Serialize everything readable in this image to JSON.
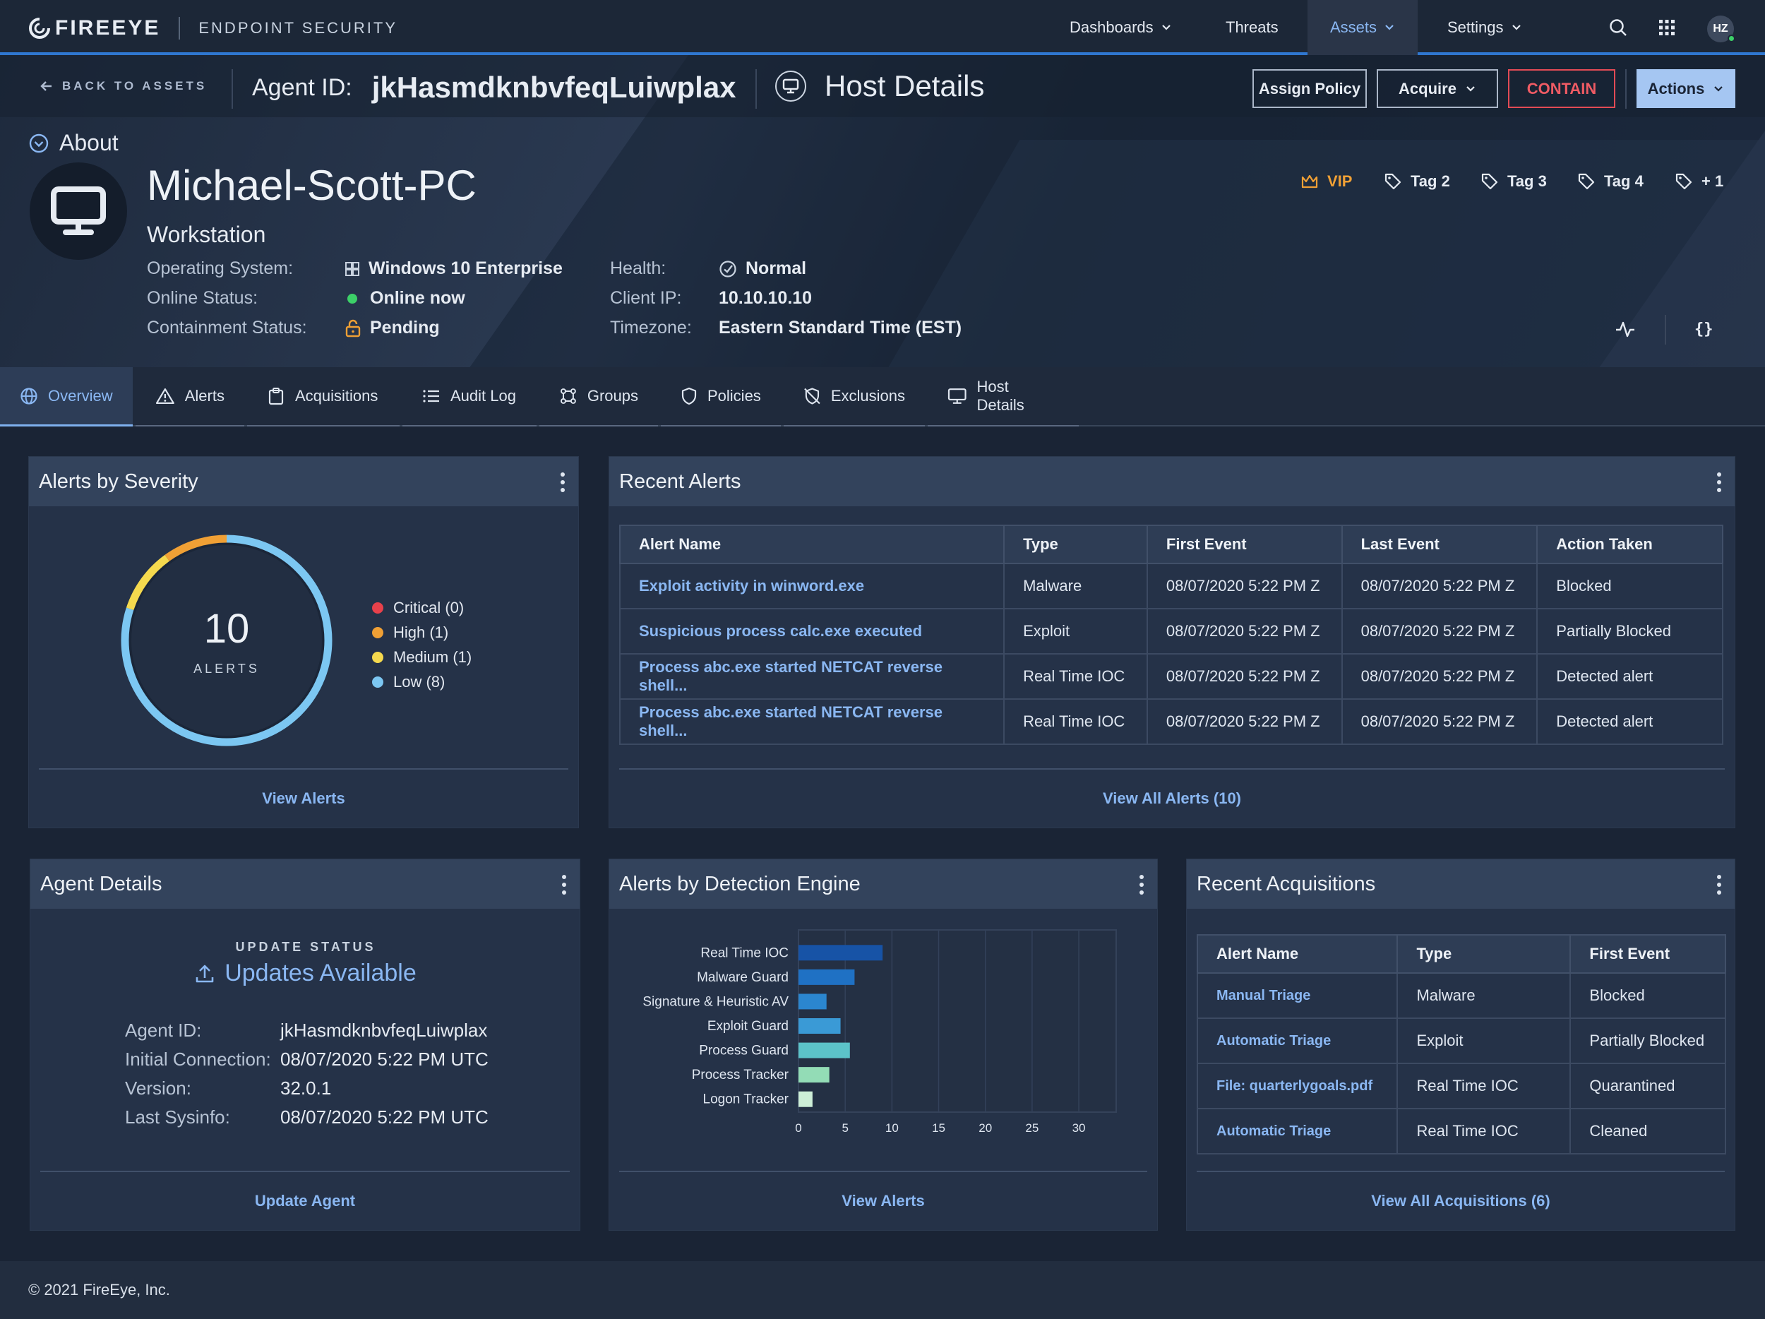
{
  "brand": {
    "logo": "FIREEYE",
    "product": "ENDPOINT SECURITY"
  },
  "nav": {
    "items": [
      {
        "label": "Dashboards",
        "dropdown": true
      },
      {
        "label": "Threats",
        "dropdown": false
      },
      {
        "label": "Assets",
        "dropdown": true,
        "active": true
      },
      {
        "label": "Settings",
        "dropdown": true
      }
    ],
    "avatar": "HZ"
  },
  "subbar": {
    "back_label": "BACK TO ASSETS",
    "agent_label": "Agent ID:",
    "agent_id": "jkHasmdknbvfeqLuiwplax",
    "page_title": "Host Details",
    "buttons": {
      "assign": "Assign Policy",
      "acquire": "Acquire",
      "contain": "CONTAIN",
      "actions": "Actions"
    }
  },
  "host": {
    "about_label": "About",
    "name": "Michael-Scott-PC",
    "type": "Workstation",
    "left_attrs": [
      {
        "key": "Operating System:",
        "value": "Windows 10 Enterprise",
        "icon": "windows-icon"
      },
      {
        "key": "Online Status:",
        "value": "Online now",
        "icon": "status-dot"
      },
      {
        "key": "Containment Status:",
        "value": "Pending",
        "icon": "lock-open-icon"
      }
    ],
    "right_attrs": [
      {
        "key": "Health:",
        "value": "Normal",
        "icon": "check-circle-icon"
      },
      {
        "key": "Client IP:",
        "value": "10.10.10.10"
      },
      {
        "key": "Timezone:",
        "value": "Eastern Standard Time (EST)"
      }
    ],
    "tags": [
      "VIP",
      "Tag 2",
      "Tag 3",
      "Tag 4",
      "+ 1"
    ],
    "colors": {
      "vip": "#f0a035",
      "online": "#3cd068",
      "pending": "#f0a035"
    }
  },
  "tabs": [
    "Overview",
    "Alerts",
    "Acquisitions",
    "Audit Log",
    "Groups",
    "Policies",
    "Exclusions",
    "Host Details"
  ],
  "severity": {
    "title": "Alerts by Severity",
    "total": "10",
    "total_label": "ALERTS",
    "legend": [
      {
        "label": "Critical (0)",
        "color": "#e8414b"
      },
      {
        "label": "High (1)",
        "color": "#f0a035"
      },
      {
        "label": "Medium (1)",
        "color": "#f5d94e"
      },
      {
        "label": "Low (8)",
        "color": "#7cc7f2"
      }
    ],
    "footer": "View Alerts"
  },
  "chart_data": {
    "type": "bar",
    "orientation": "horizontal",
    "categories": [
      "Real Time IOC",
      "Malware Guard",
      "Signature & Heuristic AV",
      "Exploit Guard",
      "Process Guard",
      "Process Tracker",
      "Logon Tracker"
    ],
    "values": [
      9,
      6,
      3,
      4.5,
      5.5,
      3.3,
      1.5
    ],
    "xticks": [
      "0",
      "5",
      "10",
      "15",
      "20",
      "25",
      "30"
    ],
    "xlim": [
      0,
      34
    ],
    "colors": [
      "#1753a6",
      "#1f71c4",
      "#2b86cf",
      "#3a9ad6",
      "#5cc3c9",
      "#93dcb6",
      "#cdeed7"
    ]
  },
  "recent_alerts": {
    "title": "Recent Alerts",
    "columns": [
      "Alert Name",
      "Type",
      "First Event",
      "Last Event",
      "Action Taken"
    ],
    "rows": [
      [
        "Exploit activity in winword.exe",
        "Malware",
        "08/07/2020 5:22 PM Z",
        "08/07/2020 5:22 PM Z",
        "Blocked"
      ],
      [
        "Suspicious process calc.exe executed",
        "Exploit",
        "08/07/2020 5:22 PM Z",
        "08/07/2020 5:22 PM Z",
        "Partially Blocked"
      ],
      [
        "Process abc.exe started NETCAT reverse shell...",
        "Real Time IOC",
        "08/07/2020 5:22 PM Z",
        "08/07/2020 5:22 PM Z",
        "Detected alert"
      ],
      [
        "Process abc.exe started NETCAT reverse shell...",
        "Real Time IOC",
        "08/07/2020 5:22 PM Z",
        "08/07/2020 5:22 PM Z",
        "Detected alert"
      ]
    ],
    "footer": "View All Alerts (10)"
  },
  "agent_details": {
    "title": "Agent Details",
    "update_status_label": "UPDATE STATUS",
    "update_status": "Updates Available",
    "rows": [
      {
        "key": "Agent ID:",
        "value": "jkHasmdknbvfeqLuiwplax"
      },
      {
        "key": "Initial Connection:",
        "value": "08/07/2020 5:22 PM UTC"
      },
      {
        "key": "Version:",
        "value": "32.0.1"
      },
      {
        "key": "Last Sysinfo:",
        "value": "08/07/2020 5:22 PM UTC"
      }
    ],
    "footer": "Update Agent"
  },
  "detection_engine": {
    "title": "Alerts by Detection Engine",
    "footer": "View Alerts"
  },
  "recent_acquisitions": {
    "title": "Recent Acquisitions",
    "columns": [
      "Alert Name",
      "Type",
      "First Event"
    ],
    "rows": [
      [
        "Manual Triage",
        "Malware",
        "Blocked"
      ],
      [
        "Automatic Triage",
        "Exploit",
        "Partially Blocked"
      ],
      [
        "File: quarterlygoals.pdf",
        "Real Time IOC",
        "Quarantined"
      ],
      [
        "Automatic Triage",
        "Real Time IOC",
        "Cleaned"
      ]
    ],
    "footer": "View All Acquisitions (6)"
  },
  "footer": {
    "copyright": "© 2021 FireEye, Inc."
  }
}
